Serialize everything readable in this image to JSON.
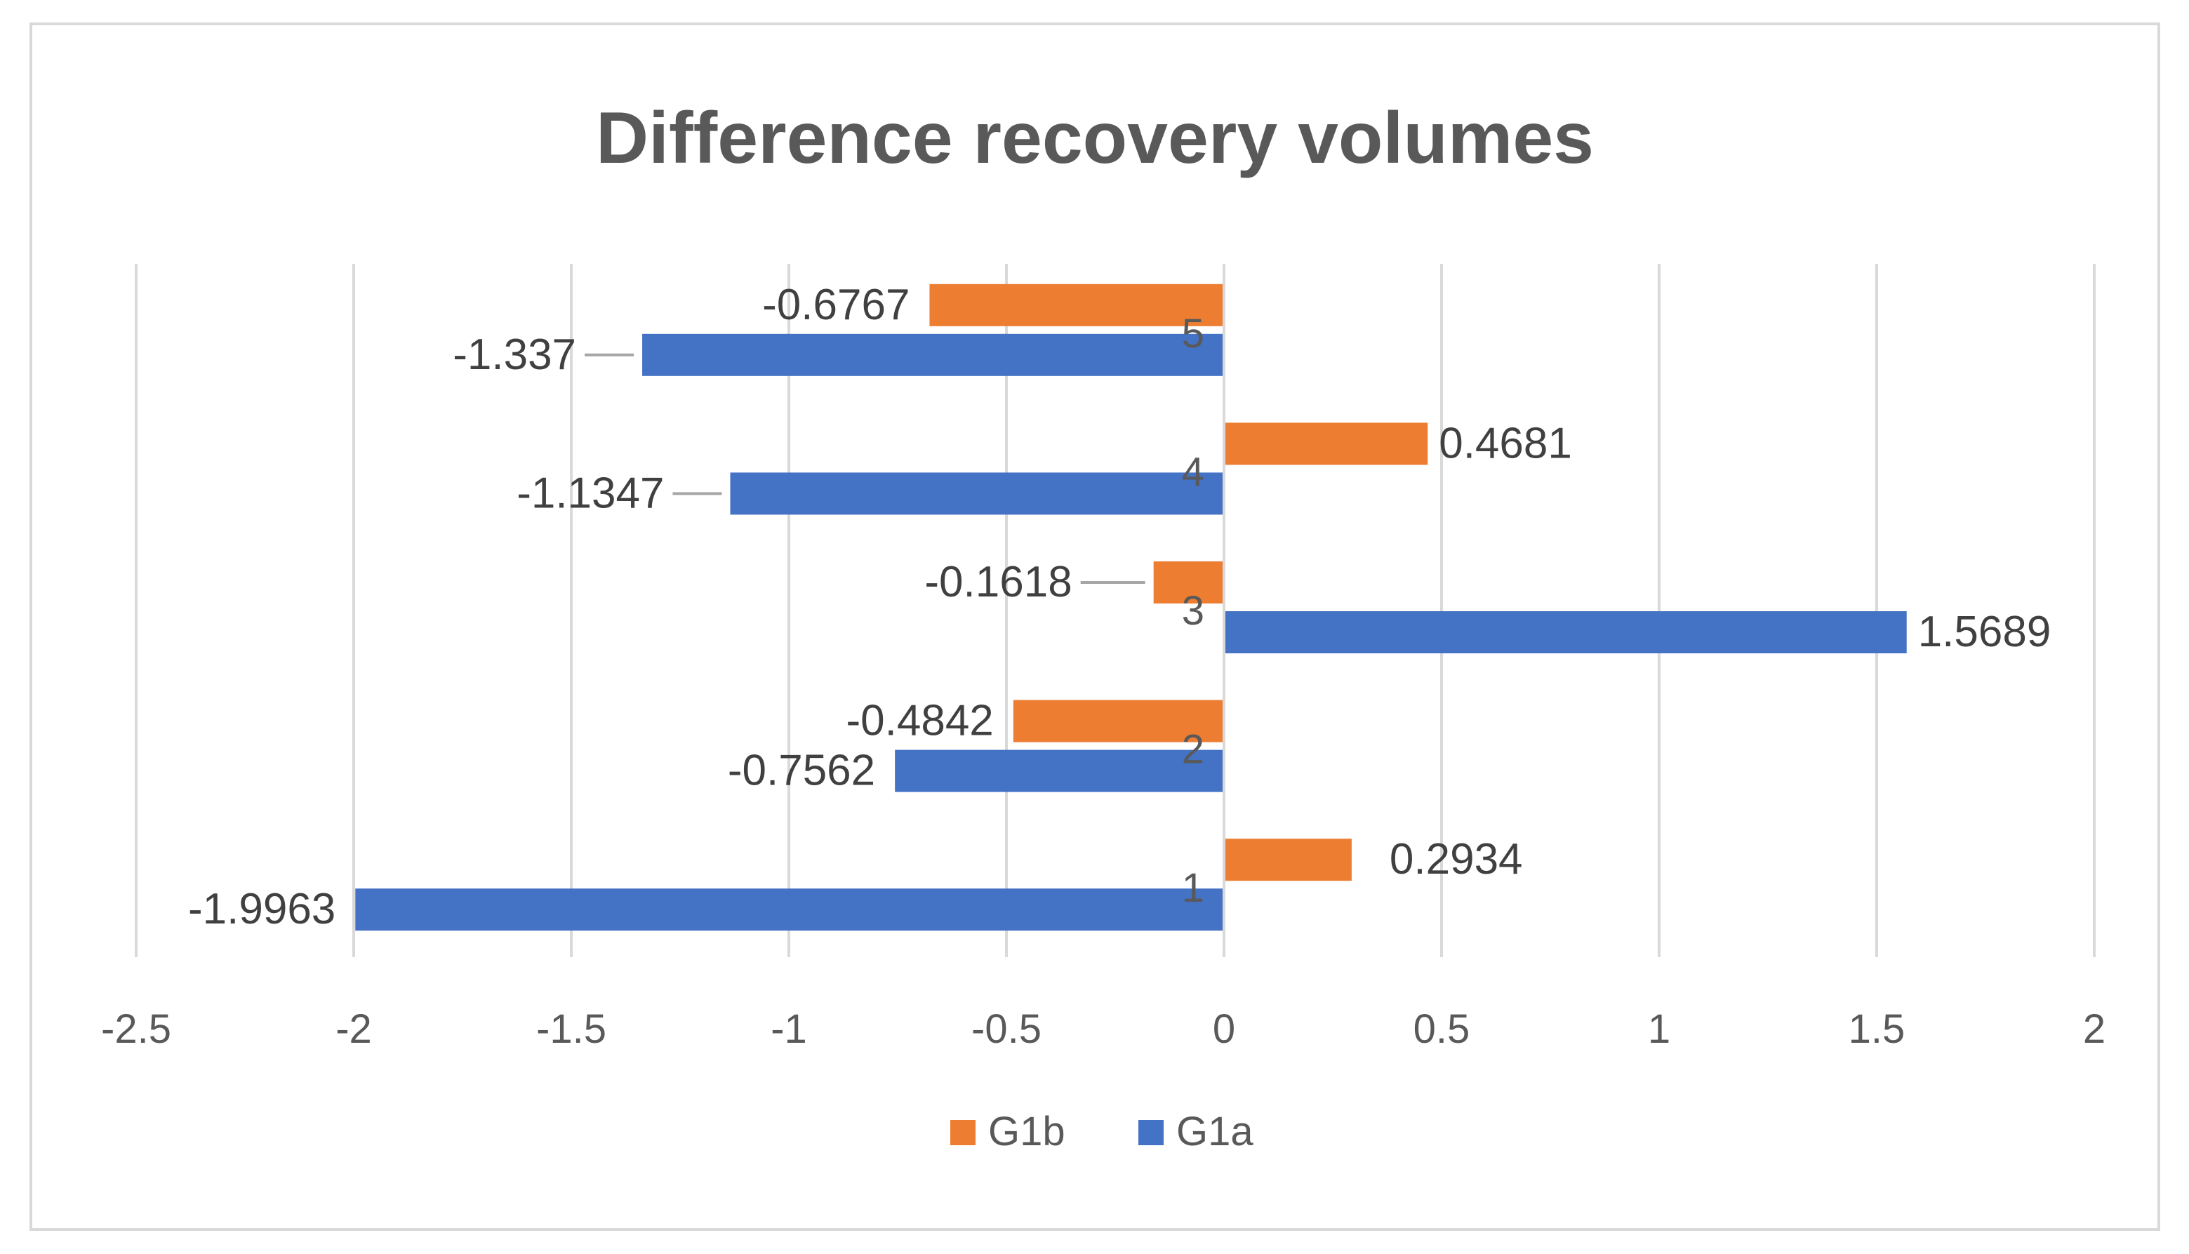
{
  "chart_data": {
    "type": "bar",
    "orientation": "horizontal",
    "title": "Difference recovery volumes",
    "categories": [
      "1",
      "2",
      "3",
      "4",
      "5"
    ],
    "series": [
      {
        "name": "G1a",
        "color": "#4472C4",
        "values": [
          -1.9963,
          -0.7562,
          1.5689,
          -1.1347,
          -1.337
        ]
      },
      {
        "name": "G1b",
        "color": "#ED7D31",
        "values": [
          0.2934,
          -0.4842,
          -0.1618,
          0.4681,
          -0.6767
        ]
      }
    ],
    "data_labels": {
      "G1a": [
        "-1.9963",
        "-0.7562",
        "1.5689",
        "-1.1347",
        "-1.337"
      ],
      "G1b": [
        "0.2934",
        "-0.4842",
        "-0.1618",
        "0.4681",
        "-0.6767"
      ]
    },
    "xlim": [
      -2.5,
      2
    ],
    "xticks": [
      -2.5,
      -2,
      -1.5,
      -1,
      -0.5,
      0,
      0.5,
      1,
      1.5,
      2
    ],
    "xtick_labels": [
      "-2.5",
      "-2",
      "-1.5",
      "-1",
      "-0.5",
      "0",
      "0.5",
      "1",
      "1.5",
      "2"
    ],
    "legend": {
      "position": "bottom",
      "order": [
        "G1b",
        "G1a"
      ]
    },
    "grid": true,
    "colors": {
      "title": "#595959",
      "grid": "#D9D9D9",
      "border": "#D9D9D9",
      "text": "#595959"
    }
  }
}
